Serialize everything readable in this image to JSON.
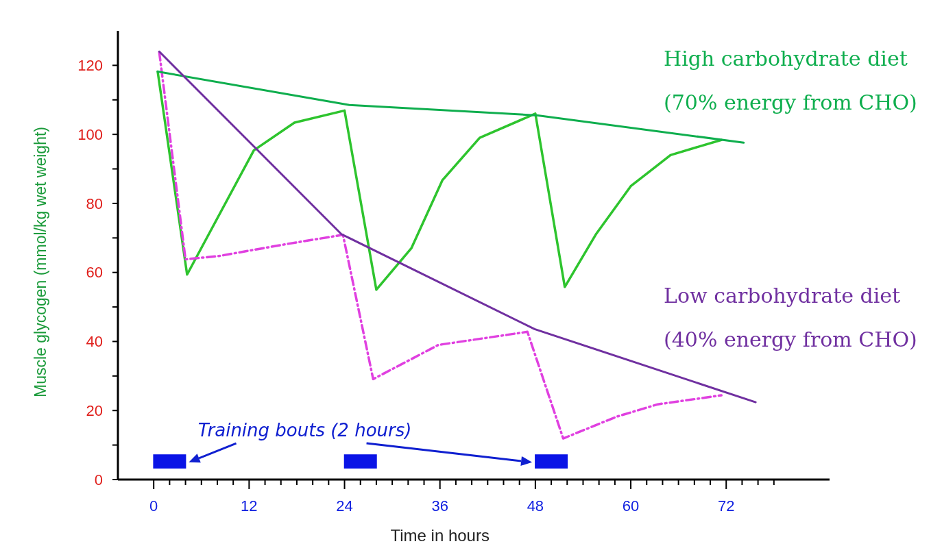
{
  "chart_data": {
    "type": "line",
    "xlabel": "Time in hours",
    "ylabel": "Muscle glycogen (mmol/kg wet weight)",
    "xlim": [
      -4.5,
      85
    ],
    "ylim": [
      0,
      130
    ],
    "xticks": [
      0,
      {
        "value": 2,
        "label": null
      },
      {
        "value": 4,
        "label": null
      },
      {
        "value": 6,
        "label": null
      },
      {
        "value": 8,
        "label": null
      },
      {
        "value": 10,
        "label": null
      },
      12,
      {
        "value": 14,
        "label": null
      },
      {
        "value": 16,
        "label": null
      },
      {
        "value": 18,
        "label": null
      },
      {
        "value": 20,
        "label": null
      },
      {
        "value": 22,
        "label": null
      },
      24,
      {
        "value": 26,
        "label": null
      },
      {
        "value": 28,
        "label": null
      },
      {
        "value": 30,
        "label": null
      },
      {
        "value": 32,
        "label": null
      },
      {
        "value": 34,
        "label": null
      },
      36,
      {
        "value": 38,
        "label": null
      },
      {
        "value": 40,
        "label": null
      },
      {
        "value": 42,
        "label": null
      },
      {
        "value": 44,
        "label": null
      },
      {
        "value": 46,
        "label": null
      },
      48,
      {
        "value": 50,
        "label": null
      },
      {
        "value": 52,
        "label": null
      },
      {
        "value": 54,
        "label": null
      },
      {
        "value": 56,
        "label": null
      },
      {
        "value": 58,
        "label": null
      },
      60,
      {
        "value": 62,
        "label": null
      },
      {
        "value": 64,
        "label": null
      },
      {
        "value": 66,
        "label": null
      },
      {
        "value": 68,
        "label": null
      },
      {
        "value": 70,
        "label": null
      },
      72,
      {
        "value": 74,
        "label": null
      },
      {
        "value": 76,
        "label": null
      },
      {
        "value": 78,
        "label": null
      }
    ],
    "yticks": [
      0,
      {
        "value": 10,
        "label": null
      },
      20,
      {
        "value": 30,
        "label": null
      },
      40,
      {
        "value": 50,
        "label": null
      },
      60,
      {
        "value": 70,
        "label": null
      },
      80,
      {
        "value": 90,
        "label": null
      },
      100,
      {
        "value": 110,
        "label": null
      },
      120
    ],
    "grid": false,
    "marker": "none",
    "series": [
      {
        "color": "#2ec42e",
        "line_style": "solid",
        "x": [
          0.5,
          4.2,
          12.6,
          17.7,
          24,
          28,
          32.4,
          36.3,
          41,
          48,
          51.7,
          55.6,
          60,
          65,
          71.4
        ],
        "values": [
          118.2,
          59.4,
          95.4,
          103.4,
          106.9,
          55,
          67,
          86.7,
          99,
          106,
          55.8,
          71,
          85,
          94,
          98.4
        ]
      },
      {
        "color": "#e040e0",
        "line_style": "dashed",
        "x": [
          0.7,
          4,
          8.3,
          16.9,
          23.8,
          27.6,
          35.8,
          47,
          51.5,
          58.2,
          63.4,
          71.4
        ],
        "values": [
          123.8,
          63.8,
          64.8,
          68.3,
          70.9,
          29.1,
          39,
          42.8,
          11.9,
          18.2,
          21.8,
          24.4
        ]
      },
      {
        "name": "High carbohydrate diet (70% energy from CHO)",
        "color": "#0fae4e",
        "line_style": "solid",
        "x": [
          0.5,
          24.6,
          48.3,
          74.2
        ],
        "values": [
          118.2,
          108.5,
          105.5,
          97.6
        ]
      },
      {
        "name": "Low carbohydrate diet (40% energy from CHO)",
        "color": "#7030a0",
        "line_style": "solid",
        "x": [
          0.7,
          23.6,
          47.9,
          75.7
        ],
        "values": [
          124,
          71.1,
          43.6,
          22.4
        ]
      },
      {
        "type": "bar",
        "color": "#0a14e6",
        "x": [
          2,
          26,
          50
        ],
        "base": [
          3.2,
          3.2,
          3.2
        ],
        "values": [
          4.1,
          4.1,
          4.1
        ]
      }
    ],
    "annotations": [
      "Training bouts (2 hours)"
    ]
  }
}
